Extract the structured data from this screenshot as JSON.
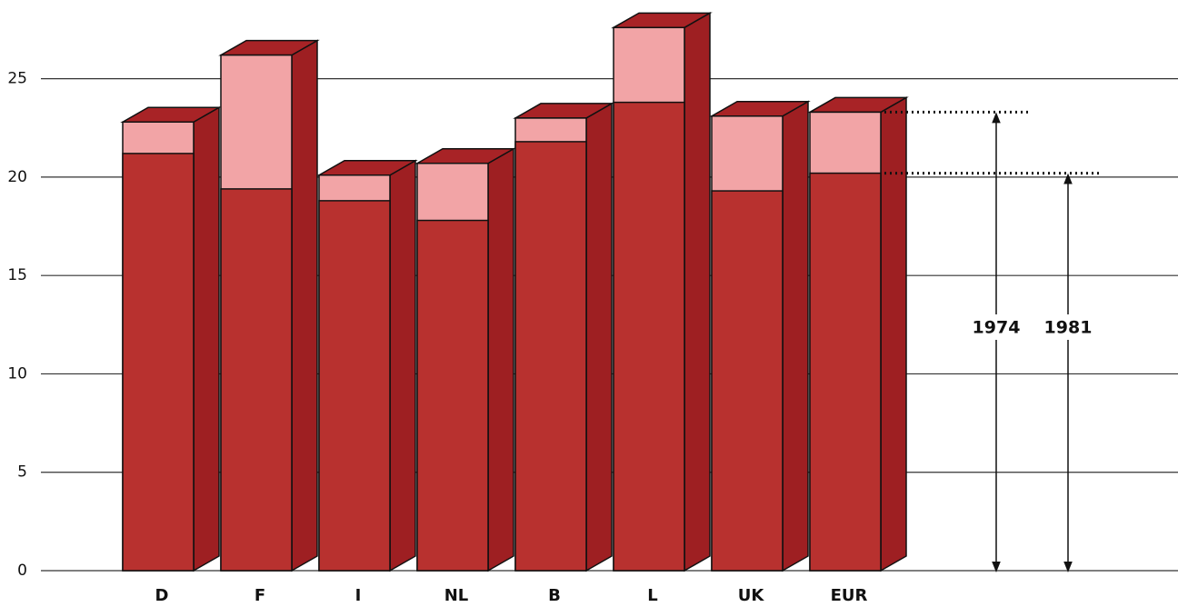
{
  "chart_data": {
    "type": "bar3d-overlap",
    "categories": [
      "D",
      "F",
      "I",
      "NL",
      "B",
      "L",
      "UK",
      "EUR"
    ],
    "series": [
      {
        "name": "1974",
        "color": "#f2a4a6",
        "values": [
          22.8,
          26.2,
          20.1,
          20.7,
          23.0,
          27.6,
          23.1,
          23.3
        ]
      },
      {
        "name": "1981",
        "color": "#b8312f",
        "values": [
          21.2,
          19.4,
          18.8,
          17.8,
          21.8,
          23.8,
          19.3,
          20.2
        ]
      }
    ],
    "ylim": [
      0,
      29
    ],
    "yticks": [
      0,
      5,
      10,
      15,
      20,
      25
    ],
    "grid": true
  }
}
